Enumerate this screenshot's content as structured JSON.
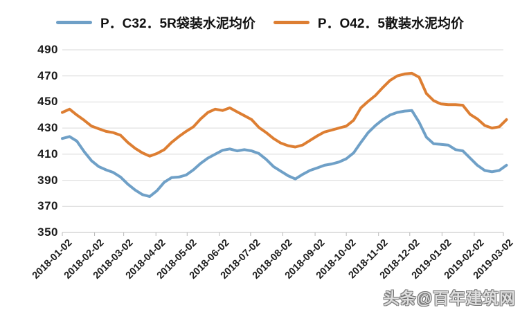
{
  "legend": {
    "items": [
      {
        "label": "P．C32．5R袋装水泥均价",
        "color": "#6FA0C7"
      },
      {
        "label": "P．O42．5散装水泥均价",
        "color": "#DD7E32"
      }
    ]
  },
  "watermark": {
    "text": "头条@百年建筑网"
  },
  "colors": {
    "gridline": "#D9D9D9",
    "axis_line": "#C2C2C2",
    "tick_mark": "#B8B8B8",
    "text": "#1C1C1C",
    "background": "#FFFFFF"
  },
  "chart_data": {
    "type": "line",
    "title": "",
    "xlabel": "",
    "ylabel": "",
    "grid": "horizontal",
    "legend_position": "top",
    "ylim": [
      350,
      490
    ],
    "yticks": [
      350,
      370,
      390,
      410,
      430,
      450,
      470,
      490
    ],
    "x_axis_start": "2018-01-02",
    "x_axis_end": "2019-03-02",
    "x_tick_labels": [
      "2018-01-02",
      "2018-02-02",
      "2018-03-02",
      "2018-04-02",
      "2018-05-02",
      "2018-06-02",
      "2018-07-02",
      "2018-08-02",
      "2018-09-02",
      "2018-10-02",
      "2018-11-02",
      "2018-12-02",
      "2019-01-02",
      "2019-02-02",
      "2019-03-02"
    ],
    "x": [
      "2018-01-02",
      "2018-01-09",
      "2018-01-16",
      "2018-01-23",
      "2018-01-30",
      "2018-02-06",
      "2018-02-13",
      "2018-02-20",
      "2018-02-27",
      "2018-03-06",
      "2018-03-13",
      "2018-03-20",
      "2018-03-27",
      "2018-04-03",
      "2018-04-10",
      "2018-04-17",
      "2018-04-24",
      "2018-05-01",
      "2018-05-08",
      "2018-05-15",
      "2018-05-22",
      "2018-05-29",
      "2018-06-05",
      "2018-06-12",
      "2018-06-19",
      "2018-06-26",
      "2018-07-03",
      "2018-07-10",
      "2018-07-17",
      "2018-07-24",
      "2018-07-31",
      "2018-08-07",
      "2018-08-14",
      "2018-08-21",
      "2018-08-28",
      "2018-09-04",
      "2018-09-11",
      "2018-09-18",
      "2018-09-25",
      "2018-10-02",
      "2018-10-09",
      "2018-10-16",
      "2018-10-23",
      "2018-10-30",
      "2018-11-06",
      "2018-11-13",
      "2018-11-20",
      "2018-11-27",
      "2018-12-04",
      "2018-12-11",
      "2018-12-18",
      "2018-12-25",
      "2019-01-01",
      "2019-01-08",
      "2019-01-15",
      "2019-01-22",
      "2019-01-29",
      "2019-02-05",
      "2019-02-12",
      "2019-02-19",
      "2019-02-26",
      "2019-03-05"
    ],
    "series": [
      {
        "name": "P．C32．5R袋装水泥均价",
        "color": "#6FA0C7",
        "values": [
          422,
          423.5,
          420,
          412,
          405,
          400.5,
          398,
          396,
          392.5,
          387,
          382.5,
          379,
          377.5,
          382,
          388.5,
          392,
          392.5,
          394,
          398,
          403,
          407,
          410,
          413,
          414,
          412.5,
          413.5,
          412.5,
          410.5,
          406,
          400.5,
          397,
          393.5,
          391,
          394.5,
          397.5,
          399.5,
          401.5,
          402.5,
          404,
          406.5,
          411,
          419,
          426.5,
          432,
          436.5,
          440,
          442,
          443,
          443.5,
          434.5,
          423,
          418,
          417.5,
          417,
          413.5,
          412.5,
          407,
          401.5,
          397.5,
          396.5,
          397.5,
          401.5
        ]
      },
      {
        "name": "P．O42．5散装水泥均价",
        "color": "#DD7E32",
        "values": [
          442,
          444.5,
          440,
          436,
          431.5,
          429.5,
          427.5,
          426.5,
          424.5,
          419,
          414.5,
          411,
          408.5,
          410.5,
          413.5,
          419,
          423.5,
          427.5,
          431,
          437,
          442,
          444.5,
          443.5,
          445.5,
          442.5,
          439.5,
          436.5,
          430.5,
          426.5,
          422,
          418.5,
          416.5,
          415.5,
          417,
          420.5,
          424,
          427,
          428.5,
          430,
          431.5,
          436,
          445.5,
          450.5,
          455,
          461,
          466.5,
          470,
          471.5,
          472,
          469,
          456.5,
          451,
          448.5,
          448,
          448,
          447.5,
          440.5,
          437,
          432,
          430,
          431,
          436.5
        ]
      }
    ]
  }
}
